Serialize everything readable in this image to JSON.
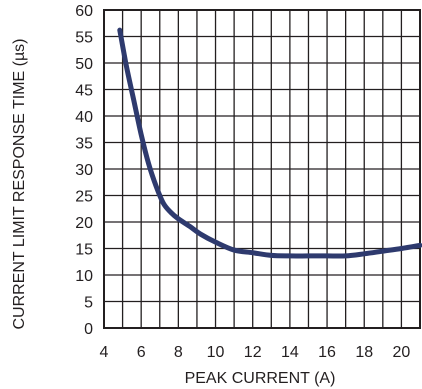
{
  "chart_data": {
    "type": "line",
    "title": "",
    "xlabel": "PEAK CURRENT (A)",
    "ylabel": "CURRENT LIMIT RESPONSE TIME (µs)",
    "xlim": [
      4,
      21
    ],
    "ylim": [
      0,
      60
    ],
    "x_ticks": [
      4,
      6,
      8,
      10,
      12,
      14,
      16,
      18,
      20
    ],
    "y_ticks": [
      0,
      5,
      10,
      15,
      20,
      25,
      30,
      35,
      40,
      45,
      50,
      55,
      60
    ],
    "x_minor_grid": [
      5,
      7,
      9,
      11,
      13,
      15,
      17,
      19
    ],
    "grid": true,
    "line_color": "#2e3a6e",
    "series": [
      {
        "x": [
          4.85,
          5.2,
          5.6,
          6.0,
          6.4,
          6.8,
          7.2,
          7.6,
          8.0,
          8.6,
          9.2,
          10.0,
          11.0,
          12.0,
          13.0,
          14.0,
          15.0,
          16.0,
          17.0,
          18.0,
          19.0,
          20.0,
          21.0
        ],
        "y": [
          56.2,
          49.5,
          43.0,
          36.5,
          31.0,
          26.8,
          23.5,
          21.8,
          20.6,
          19.2,
          17.7,
          16.2,
          14.7,
          14.2,
          13.7,
          13.6,
          13.6,
          13.6,
          13.6,
          14.0,
          14.5,
          15.0,
          15.6
        ]
      }
    ]
  }
}
